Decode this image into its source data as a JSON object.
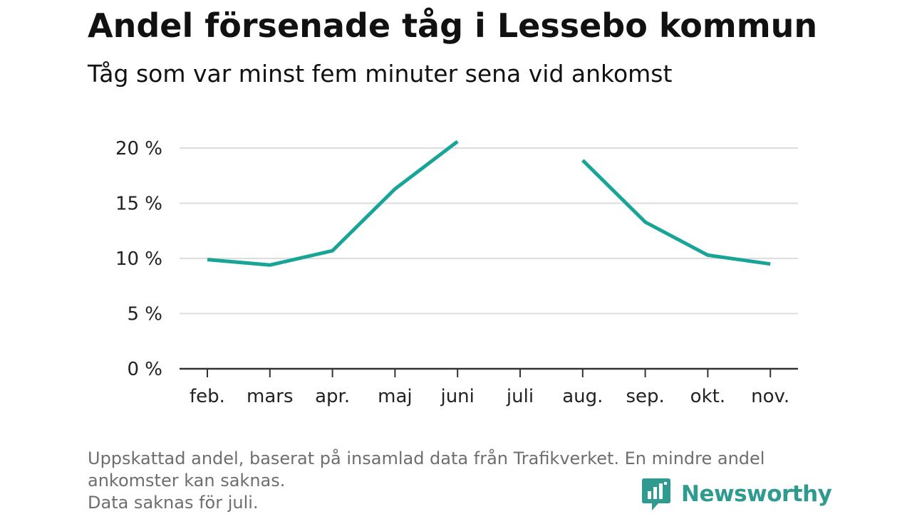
{
  "header": {
    "title": "Andel försenade tåg i Lessebo kommun",
    "subtitle": "Tåg som var minst fem minuter sena vid ankomst"
  },
  "footer": {
    "note_lines": [
      "Uppskattad andel, baserat på insamlad data från Trafikverket. En mindre andel",
      "ankomster kan saknas.",
      "Data saknas för juli."
    ],
    "brand": "Newsworthy",
    "brand_icon": "newsworthy-logo-icon"
  },
  "colors": {
    "line": "#18a497",
    "grid": "#dddddd",
    "axis": "#333333",
    "brand": "#2f9a8f"
  },
  "chart_data": {
    "type": "line",
    "title": "Andel försenade tåg i Lessebo kommun",
    "subtitle": "Tåg som var minst fem minuter sena vid ankomst",
    "xlabel": "",
    "ylabel": "",
    "categories": [
      "feb.",
      "mars",
      "apr.",
      "maj",
      "juni",
      "juli",
      "aug.",
      "sep.",
      "okt.",
      "nov."
    ],
    "series": [
      {
        "values": [
          9.9,
          9.4,
          10.7,
          16.3,
          20.6,
          null,
          18.9,
          13.3,
          10.3,
          9.5
        ]
      }
    ],
    "ylim": [
      0,
      20
    ],
    "yticks": [
      0,
      5,
      10,
      15,
      20
    ],
    "ytick_labels": [
      "0 %",
      "5 %",
      "10 %",
      "15 %",
      "20 %"
    ],
    "grid": true,
    "legend": "none"
  }
}
